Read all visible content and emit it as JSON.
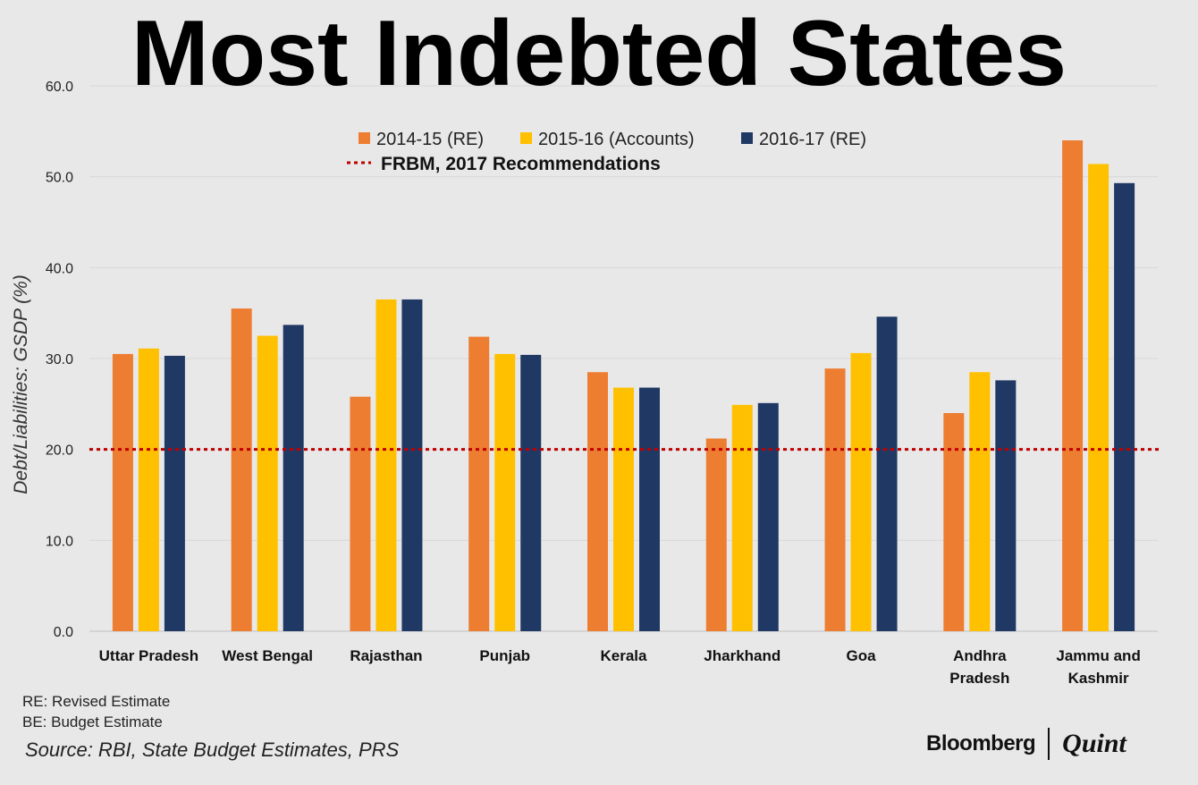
{
  "title": "Most Indebted States",
  "chart_data": {
    "type": "bar",
    "title": "Most Indebted States",
    "xlabel": "",
    "ylabel": "Debt/Liabilities: GSDP (%)",
    "ylim": [
      0,
      60
    ],
    "yticks": [
      "0.0",
      "10.0",
      "20.0",
      "30.0",
      "40.0",
      "50.0",
      "60.0"
    ],
    "ytick_values": [
      0,
      10,
      20,
      30,
      40,
      50,
      60
    ],
    "grid": true,
    "legend_position": "top-center",
    "categories": [
      [
        "Uttar Pradesh"
      ],
      [
        "West Bengal"
      ],
      [
        "Rajasthan"
      ],
      [
        "Punjab"
      ],
      [
        "Kerala"
      ],
      [
        "Jharkhand"
      ],
      [
        "Goa"
      ],
      [
        "Andhra",
        "Pradesh"
      ],
      [
        "Jammu and",
        "Kashmir"
      ]
    ],
    "series": [
      {
        "name": "2014-15 (RE)",
        "color": "#ed7d31",
        "values": [
          30.5,
          35.5,
          25.8,
          32.4,
          28.5,
          21.2,
          28.9,
          24.0,
          54.0
        ]
      },
      {
        "name": "2015-16 (Accounts)",
        "color": "#ffc000",
        "values": [
          31.1,
          32.5,
          36.5,
          30.5,
          26.8,
          24.9,
          30.6,
          28.5,
          51.4
        ]
      },
      {
        "name": "2016-17 (RE)",
        "color": "#203864",
        "values": [
          30.3,
          33.7,
          36.5,
          30.4,
          26.8,
          25.1,
          34.6,
          27.6,
          49.3
        ]
      }
    ],
    "reference_line": {
      "name": "FRBM, 2017 Recommendations",
      "value": 20,
      "color": "#c00000",
      "style": "dotted"
    }
  },
  "notes": {
    "re": "RE: Revised Estimate",
    "be": "BE: Budget Estimate"
  },
  "source": "Source: RBI, State Budget Estimates, PRS",
  "brand": {
    "bloomberg": "Bloomberg",
    "quint": "Quint"
  }
}
